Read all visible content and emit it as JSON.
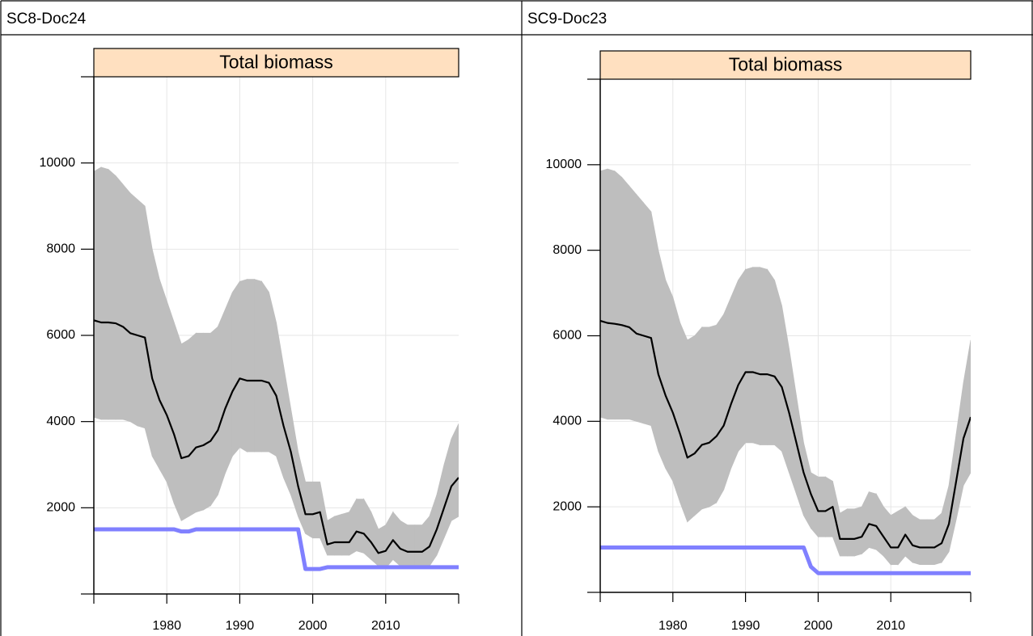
{
  "table": {
    "headers": [
      "SC8-Doc24",
      "SC9-Doc23"
    ]
  },
  "chart_data": [
    {
      "type": "line",
      "title": "Total biomass",
      "x": [
        1970,
        1971,
        1972,
        1973,
        1974,
        1975,
        1976,
        1977,
        1978,
        1979,
        1980,
        1981,
        1982,
        1983,
        1984,
        1985,
        1986,
        1987,
        1988,
        1989,
        1990,
        1991,
        1992,
        1993,
        1994,
        1995,
        1996,
        1997,
        1998,
        1999,
        2000,
        2001,
        2002,
        2003,
        2004,
        2005,
        2006,
        2007,
        2008,
        2009,
        2010,
        2011,
        2012,
        2013,
        2014,
        2015,
        2016,
        2017,
        2018,
        2019,
        2020
      ],
      "band": {
        "color": "#bebebe",
        "upper": [
          9800,
          9900,
          9850,
          9700,
          9500,
          9300,
          9150,
          9000,
          8000,
          7300,
          6800,
          6300,
          5800,
          5900,
          6050,
          6050,
          6050,
          6200,
          6600,
          7000,
          7250,
          7300,
          7300,
          7250,
          7000,
          6300,
          5300,
          4300,
          3300,
          2600,
          2600,
          2600,
          1700,
          1800,
          1850,
          1900,
          2200,
          2200,
          1900,
          1500,
          1600,
          1900,
          1700,
          1600,
          1600,
          1600,
          1800,
          2300,
          3000,
          3600,
          3950
        ],
        "lower": [
          4100,
          4050,
          4050,
          4050,
          4050,
          4000,
          3900,
          3850,
          3200,
          2900,
          2600,
          2100,
          1700,
          1800,
          1900,
          1950,
          2050,
          2300,
          2800,
          3200,
          3400,
          3300,
          3300,
          3300,
          3300,
          3200,
          2700,
          2300,
          1800,
          1400,
          1300,
          1300,
          900,
          900,
          900,
          900,
          1000,
          950,
          800,
          650,
          600,
          800,
          650,
          600,
          600,
          600,
          650,
          900,
          1300,
          1700,
          1800
        ]
      },
      "series": [
        {
          "color": "#000000",
          "values": [
            6350,
            6300,
            6300,
            6280,
            6200,
            6050,
            6000,
            5950,
            5000,
            4500,
            4150,
            3700,
            3150,
            3200,
            3400,
            3450,
            3550,
            3800,
            4300,
            4700,
            5000,
            4950,
            4950,
            4950,
            4900,
            4600,
            3900,
            3300,
            2500,
            1850,
            1850,
            1900,
            1150,
            1200,
            1200,
            1200,
            1450,
            1400,
            1200,
            950,
            1000,
            1250,
            1050,
            980,
            980,
            980,
            1100,
            1500,
            2000,
            2500,
            2700
          ]
        },
        {
          "color": "#8080ff",
          "values": [
            1500,
            1500,
            1500,
            1500,
            1500,
            1500,
            1500,
            1500,
            1500,
            1500,
            1500,
            1500,
            1450,
            1450,
            1500,
            1500,
            1500,
            1500,
            1500,
            1500,
            1500,
            1500,
            1500,
            1500,
            1500,
            1500,
            1500,
            1500,
            1500,
            580,
            580,
            580,
            620,
            620,
            620,
            620,
            620,
            620,
            620,
            620,
            620,
            620,
            620,
            620,
            620,
            620,
            620,
            620,
            620,
            620,
            620
          ]
        }
      ],
      "xlim": [
        1970,
        2020
      ],
      "ylim": [
        0,
        12000
      ],
      "xticks": [
        1980,
        1990,
        2000,
        2010
      ],
      "yticks": [
        2000,
        4000,
        6000,
        8000,
        10000
      ],
      "grid": true
    },
    {
      "type": "line",
      "title": "Total biomass",
      "x": [
        1970,
        1971,
        1972,
        1973,
        1974,
        1975,
        1976,
        1977,
        1978,
        1979,
        1980,
        1981,
        1982,
        1983,
        1984,
        1985,
        1986,
        1987,
        1988,
        1989,
        1990,
        1991,
        1992,
        1993,
        1994,
        1995,
        1996,
        1997,
        1998,
        1999,
        2000,
        2001,
        2002,
        2003,
        2004,
        2005,
        2006,
        2007,
        2008,
        2009,
        2010,
        2011,
        2012,
        2013,
        2014,
        2015,
        2016,
        2017,
        2018,
        2019,
        2020,
        2021
      ],
      "band": {
        "color": "#bebebe",
        "upper": [
          9850,
          9900,
          9850,
          9700,
          9500,
          9300,
          9100,
          8900,
          8000,
          7300,
          6900,
          6300,
          5900,
          6000,
          6200,
          6200,
          6250,
          6500,
          6900,
          7300,
          7550,
          7600,
          7600,
          7550,
          7300,
          6700,
          5700,
          4600,
          3500,
          2800,
          2700,
          2700,
          2600,
          1850,
          1950,
          1950,
          2000,
          2350,
          2300,
          2000,
          1800,
          1900,
          2000,
          1800,
          1700,
          1700,
          1700,
          1850,
          2500,
          3700,
          4900,
          5900
        ],
        "lower": [
          4100,
          4050,
          4050,
          4050,
          4050,
          4000,
          3950,
          3900,
          3300,
          2900,
          2600,
          2100,
          1650,
          1800,
          1950,
          2000,
          2100,
          2400,
          2900,
          3300,
          3500,
          3500,
          3450,
          3450,
          3450,
          3300,
          2800,
          2300,
          1800,
          1500,
          1300,
          1300,
          1300,
          850,
          850,
          850,
          900,
          1050,
          1000,
          850,
          650,
          650,
          850,
          700,
          650,
          650,
          650,
          700,
          950,
          1700,
          2500,
          2800
        ]
      },
      "series": [
        {
          "color": "#000000",
          "values": [
            6350,
            6300,
            6280,
            6250,
            6200,
            6050,
            6000,
            5950,
            5100,
            4600,
            4200,
            3700,
            3150,
            3250,
            3450,
            3500,
            3650,
            3900,
            4400,
            4850,
            5150,
            5150,
            5100,
            5100,
            5050,
            4800,
            4200,
            3500,
            2800,
            2300,
            1900,
            1900,
            2000,
            1250,
            1250,
            1250,
            1300,
            1600,
            1550,
            1300,
            1050,
            1050,
            1350,
            1100,
            1050,
            1050,
            1050,
            1150,
            1600,
            2600,
            3600,
            4100
          ]
        },
        {
          "color": "#8080ff",
          "values": [
            1050,
            1050,
            1050,
            1050,
            1050,
            1050,
            1050,
            1050,
            1050,
            1050,
            1050,
            1050,
            1050,
            1050,
            1050,
            1050,
            1050,
            1050,
            1050,
            1050,
            1050,
            1050,
            1050,
            1050,
            1050,
            1050,
            1050,
            1050,
            1050,
            600,
            450,
            450,
            450,
            450,
            450,
            450,
            450,
            450,
            450,
            450,
            450,
            450,
            450,
            450,
            450,
            450,
            450,
            450,
            450,
            450,
            450,
            450
          ]
        }
      ],
      "xlim": [
        1970,
        2021
      ],
      "ylim": [
        0,
        12000
      ],
      "xticks": [
        1980,
        1990,
        2000,
        2010
      ],
      "yticks": [
        2000,
        4000,
        6000,
        8000,
        10000
      ],
      "grid": true
    }
  ]
}
